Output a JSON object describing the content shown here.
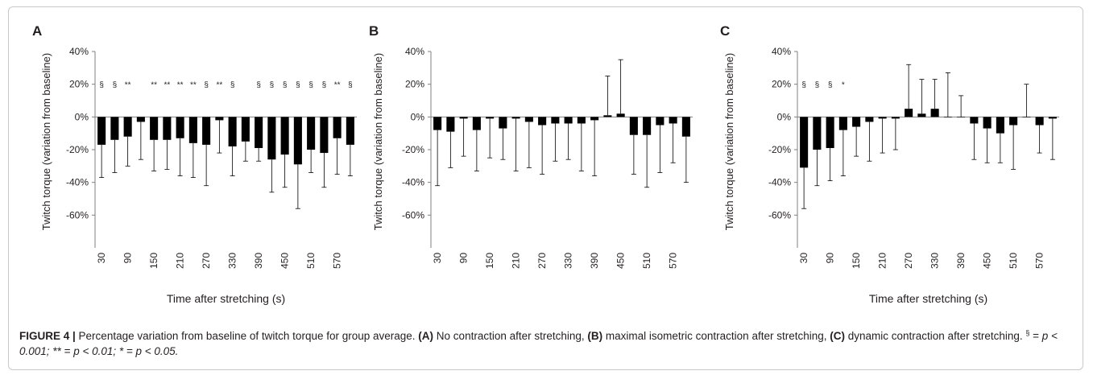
{
  "caption": {
    "figure_label": "FIGURE 4 |",
    "text_1": " Percentage variation from baseline of twitch torque for group average. ",
    "a_tag": "(A)",
    "text_2": " No contraction after stretching, ",
    "b_tag": "(B)",
    "text_3": " maximal isometric contraction after stretching, ",
    "c_tag": "(C)",
    "text_4": " dynamic contraction after stretching. ",
    "sup_symbol": "§",
    "text_5": " = ",
    "p1": "p < 0.001; ** = ",
    "p2": "p < 0.01; * = ",
    "p3": "p < 0.05."
  },
  "chart_data": [
    {
      "panel": "A",
      "type": "bar",
      "xlabel": "Time after stretching (s)",
      "ylabel": "Twitch torque (variation from baseline)",
      "ylim": [
        -80,
        40
      ],
      "yticks": [
        "40%",
        "20%",
        "0%",
        "-20%",
        "-40%",
        "-60%"
      ],
      "ytick_values": [
        40,
        20,
        0,
        -20,
        -40,
        -60
      ],
      "xtick_labels": [
        "30",
        "90",
        "150",
        "210",
        "270",
        "330",
        "390",
        "450",
        "510",
        "570"
      ],
      "categories": [
        30,
        60,
        90,
        120,
        150,
        180,
        210,
        240,
        270,
        300,
        330,
        360,
        390,
        420,
        450,
        480,
        510,
        540,
        570,
        600
      ],
      "values": [
        -17,
        -14,
        -12,
        -3,
        -14,
        -14,
        -13,
        -16,
        -17,
        -2,
        -18,
        -15,
        -19,
        -26,
        -23,
        -29,
        -20,
        -22,
        -13,
        -17
      ],
      "errors": [
        20,
        20,
        18,
        23,
        19,
        18,
        23,
        21,
        25,
        20,
        18,
        12,
        8,
        20,
        20,
        27,
        14,
        21,
        22,
        19
      ],
      "annotations": [
        "§",
        "§",
        "**",
        "",
        "**",
        "**",
        "**",
        "**",
        "§",
        "**",
        "§",
        "",
        "§",
        "§",
        "§",
        "§",
        "§",
        "§",
        "**",
        "§"
      ]
    },
    {
      "panel": "B",
      "type": "bar",
      "xlabel": "",
      "ylabel": "Twitch torque (variation from baseline)",
      "ylim": [
        -80,
        40
      ],
      "yticks": [
        "40%",
        "20%",
        "0%",
        "-20%",
        "-40%",
        "-60%"
      ],
      "ytick_values": [
        40,
        20,
        0,
        -20,
        -40,
        -60
      ],
      "xtick_labels": [
        "30",
        "90",
        "150",
        "210",
        "270",
        "330",
        "390",
        "450",
        "510",
        "570"
      ],
      "categories": [
        30,
        60,
        90,
        120,
        150,
        180,
        210,
        240,
        270,
        300,
        330,
        360,
        390,
        420,
        450,
        480,
        510,
        540,
        570,
        600
      ],
      "values": [
        -8,
        -9,
        -1,
        -8,
        -1,
        -7,
        -1,
        -3,
        -5,
        -4,
        -4,
        -4,
        -2,
        1,
        2,
        -11,
        -11,
        -5,
        -4,
        -12
      ],
      "errors": [
        34,
        22,
        23,
        25,
        24,
        19,
        32,
        28,
        30,
        23,
        22,
        29,
        34,
        24,
        33,
        24,
        32,
        29,
        24,
        28
      ],
      "annotations": []
    },
    {
      "panel": "C",
      "type": "bar",
      "xlabel": "Time after stretching (s)",
      "ylabel": "Twitch torque (variation from baseline)",
      "ylim": [
        -80,
        40
      ],
      "yticks": [
        "40%",
        "20%",
        "0%",
        "-20%",
        "-40%",
        "-60%"
      ],
      "ytick_values": [
        40,
        20,
        0,
        -20,
        -40,
        -60
      ],
      "xtick_labels": [
        "30",
        "90",
        "150",
        "210",
        "270",
        "330",
        "390",
        "450",
        "510",
        "570"
      ],
      "categories": [
        30,
        60,
        90,
        120,
        150,
        180,
        210,
        240,
        270,
        300,
        330,
        360,
        390,
        420,
        450,
        480,
        510,
        540,
        570,
        600
      ],
      "values": [
        -31,
        -20,
        -19,
        -8,
        -6,
        -3,
        -1,
        -1,
        5,
        2,
        5,
        0,
        0,
        -4,
        -7,
        -10,
        -5,
        0,
        -5,
        -1
      ],
      "errors": [
        25,
        22,
        20,
        28,
        18,
        24,
        21,
        19,
        27,
        21,
        18,
        27,
        13,
        22,
        21,
        18,
        27,
        20,
        17,
        25
      ],
      "annotations": [
        "§",
        "§",
        "§",
        "*",
        "",
        "",
        "",
        "",
        "",
        "",
        "",
        "",
        "",
        "",
        "",
        "",
        "",
        "",
        "",
        ""
      ]
    }
  ],
  "colors": {
    "bar": "#000000",
    "axis": "#7f7f7f",
    "frame": "#c9c9c9",
    "text": "#231f20"
  }
}
